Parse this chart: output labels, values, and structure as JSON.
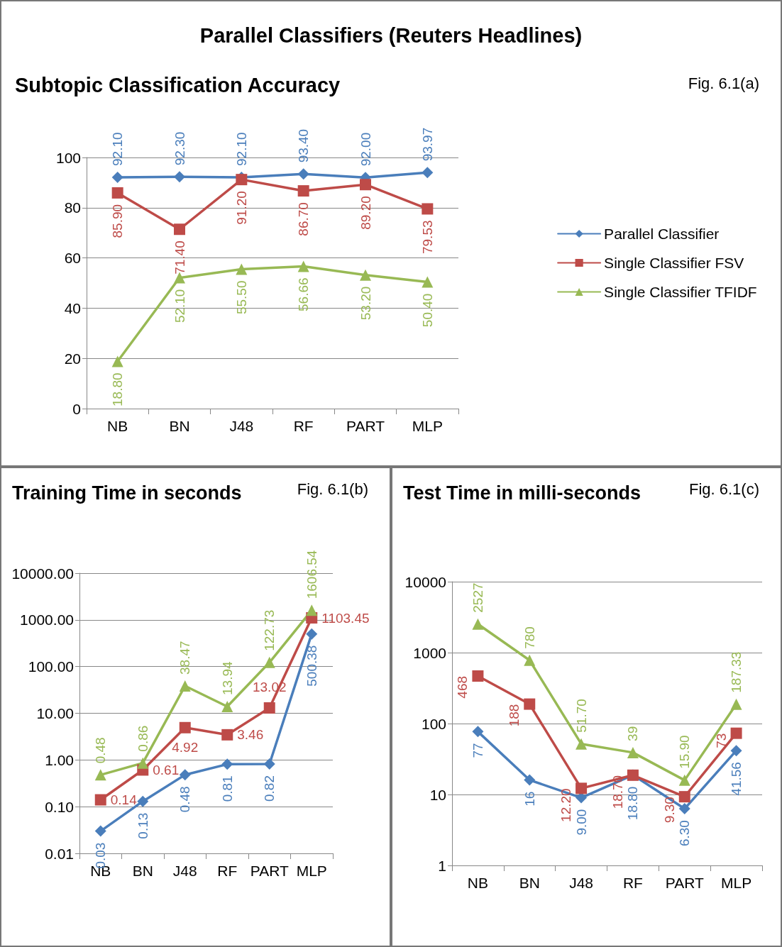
{
  "chart_data": [
    {
      "type": "line",
      "title": "Parallel Classifiers (Reuters Headlines)",
      "subtitle": "Subtopic Classification Accuracy",
      "annotations": [
        "Fig. 6.1(a)"
      ],
      "categories": [
        "NB",
        "BN",
        "J48",
        "RF",
        "PART",
        "MLP"
      ],
      "ylim": [
        0,
        100
      ],
      "yticks": [
        0,
        20,
        40,
        60,
        80,
        100
      ],
      "grid": "y",
      "legend": "right",
      "line_style": "solid",
      "series": [
        {
          "name": "Parallel Classifier",
          "color": "#4a7ebb",
          "marker": "diamond",
          "values": [
            92.1,
            92.3,
            92.1,
            93.4,
            92.0,
            93.97
          ],
          "value_labels": [
            "92.10",
            "92.30",
            "92.10",
            "93.40",
            "92.00",
            "93.97"
          ]
        },
        {
          "name": "Single Classifier FSV",
          "color": "#be4b48",
          "marker": "square",
          "values": [
            85.9,
            71.4,
            91.2,
            86.7,
            89.2,
            79.53
          ],
          "value_labels": [
            "85.90",
            "71.40",
            "91.20",
            "86.70",
            "89.20",
            "79.53"
          ]
        },
        {
          "name": "Single Classifier TFIDF",
          "color": "#98b954",
          "marker": "triangle",
          "values": [
            18.8,
            52.1,
            55.5,
            56.66,
            53.2,
            50.4
          ],
          "value_labels": [
            "18.80",
            "52.10",
            "55.50",
            "56.66",
            "53.20",
            "50.40"
          ]
        }
      ]
    },
    {
      "type": "line",
      "title": "Training Time in seconds",
      "annotations": [
        "Fig. 6.1(b)"
      ],
      "categories": [
        "NB",
        "BN",
        "J48",
        "RF",
        "PART",
        "MLP"
      ],
      "log": "y",
      "ylim": [
        0.01,
        10000
      ],
      "yticks": [
        0.01,
        {
          "value": 0.1,
          "label": "0.10"
        },
        {
          "value": 1,
          "label": "1.00"
        },
        {
          "value": 10,
          "label": "10.00"
        },
        {
          "value": 100,
          "label": "100.00"
        },
        {
          "value": 1000,
          "label": "1000.00"
        },
        {
          "value": 10000,
          "label": "10000.00"
        }
      ],
      "grid": "y",
      "line_style": "solid",
      "series": [
        {
          "color": "#4a7ebb",
          "marker": "diamond",
          "values": [
            0.03,
            0.13,
            0.48,
            0.81,
            0.82,
            500.38
          ],
          "value_labels": [
            "0.03",
            "0.13",
            "0.48",
            "0.81",
            "0.82",
            "500.38"
          ]
        },
        {
          "color": "#be4b48",
          "marker": "square",
          "values": [
            0.14,
            0.61,
            4.92,
            3.46,
            13.02,
            1103.45
          ],
          "value_labels": [
            "0.14",
            "0.61",
            "4.92",
            "3.46",
            "13.02",
            "1103.45"
          ]
        },
        {
          "color": "#98b954",
          "marker": "triangle",
          "values": [
            0.48,
            0.86,
            38.47,
            13.94,
            122.73,
            1606.54
          ],
          "value_labels": [
            "0.48",
            "0.86",
            "38.47",
            "13.94",
            "122.73",
            "1606.54"
          ]
        }
      ]
    },
    {
      "type": "line",
      "title": "Test Time in milli-seconds",
      "annotations": [
        "Fig. 6.1(c)"
      ],
      "categories": [
        "NB",
        "BN",
        "J48",
        "RF",
        "PART",
        "MLP"
      ],
      "log": "y",
      "ylim": [
        1,
        10000
      ],
      "yticks": [
        1,
        10,
        100,
        1000,
        10000
      ],
      "grid": "y",
      "line_style": "solid",
      "series": [
        {
          "color": "#4a7ebb",
          "marker": "diamond",
          "values": [
            77,
            16,
            9.0,
            18.8,
            6.3,
            41.56
          ],
          "value_labels": [
            "77",
            "16",
            "9.00",
            "18.80",
            "6.30",
            "41.56"
          ]
        },
        {
          "color": "#be4b48",
          "marker": "square",
          "values": [
            468,
            188,
            12.2,
            18.7,
            9.3,
            73
          ],
          "value_labels": [
            "468",
            "188",
            "12.20",
            "18.70",
            "9.30",
            "73"
          ]
        },
        {
          "color": "#98b954",
          "marker": "triangle",
          "values": [
            2527,
            780,
            51.7,
            39,
            15.9,
            187.33
          ],
          "value_labels": [
            "2527",
            "780",
            "51.70",
            "39",
            "15.90",
            "187.33"
          ]
        }
      ]
    }
  ]
}
